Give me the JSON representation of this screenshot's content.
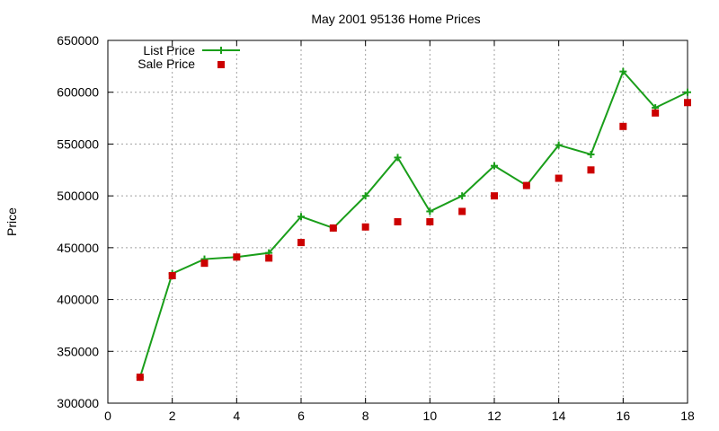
{
  "chart_data": {
    "type": "line",
    "title": "May 2001 95136 Home Prices",
    "xlabel": "",
    "ylabel": "Price",
    "xlim": [
      0,
      18
    ],
    "ylim": [
      300000,
      650000
    ],
    "x_ticks": [
      0,
      2,
      4,
      6,
      8,
      10,
      12,
      14,
      16,
      18
    ],
    "y_ticks": [
      300000,
      350000,
      400000,
      450000,
      500000,
      550000,
      600000,
      650000
    ],
    "grid": true,
    "legend_position": "top-left",
    "series": [
      {
        "name": "List Price",
        "style": "line-with-plus-markers",
        "color": "#1a9e1a",
        "x": [
          1,
          2,
          3,
          4,
          5,
          6,
          7,
          8,
          9,
          10,
          11,
          12,
          13,
          14,
          15,
          16,
          17,
          18
        ],
        "values": [
          325000,
          425000,
          439000,
          441000,
          445000,
          480000,
          469000,
          500000,
          537000,
          485000,
          500000,
          529000,
          510000,
          549000,
          540000,
          620000,
          585000,
          600000
        ]
      },
      {
        "name": "Sale Price",
        "style": "square-markers",
        "color": "#cc0000",
        "x": [
          1,
          2,
          3,
          4,
          5,
          6,
          7,
          8,
          9,
          10,
          11,
          12,
          13,
          14,
          15,
          16,
          17,
          18
        ],
        "values": [
          325000,
          423000,
          435000,
          441000,
          440000,
          455000,
          469000,
          470000,
          475000,
          475000,
          485000,
          500000,
          510000,
          517000,
          525000,
          567000,
          580000,
          590000
        ]
      }
    ]
  }
}
